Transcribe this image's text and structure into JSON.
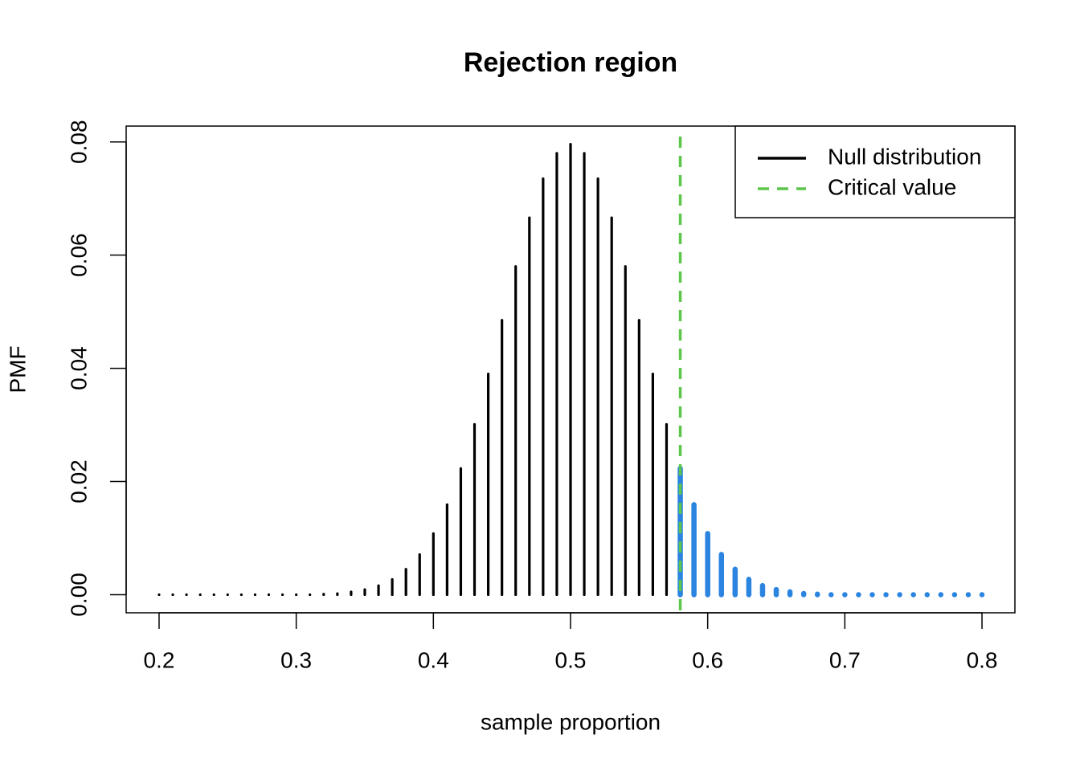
{
  "chart_data": {
    "type": "pmf",
    "title": "Rejection region",
    "x_label": "sample proportion",
    "y_label": "PMF",
    "x": [
      0.2,
      0.21,
      0.22,
      0.23,
      0.24,
      0.25,
      0.26,
      0.27,
      0.28,
      0.29,
      0.3,
      0.31,
      0.32,
      0.33,
      0.34,
      0.35,
      0.36,
      0.37,
      0.38,
      0.39,
      0.4,
      0.41,
      0.42,
      0.43,
      0.44,
      0.45,
      0.46,
      0.47,
      0.48,
      0.49,
      0.5,
      0.51,
      0.52,
      0.53,
      0.54,
      0.55,
      0.56,
      0.57,
      0.58,
      0.59,
      0.6,
      0.61,
      0.62,
      0.63,
      0.64,
      0.65,
      0.66,
      0.67,
      0.68,
      0.69,
      0.7,
      0.71,
      0.72,
      0.73,
      0.74,
      0.75,
      0.76,
      0.77,
      0.78,
      0.79,
      0.8
    ],
    "series": [
      {
        "name": "Null distribution",
        "color": "#000000",
        "values": [
          0,
          0,
          0,
          0,
          0,
          0,
          0,
          0,
          0,
          0,
          0,
          0,
          0.0001,
          0.0002,
          0.0005,
          0.0009,
          0.0016,
          0.0027,
          0.0045,
          0.0071,
          0.0108,
          0.0159,
          0.0223,
          0.0301,
          0.039,
          0.0485,
          0.058,
          0.0666,
          0.0735,
          0.078,
          0.0796,
          0.078,
          0.0735,
          0.0666,
          0.058,
          0.0485,
          0.039,
          0.0301,
          0.0223,
          0.0159,
          0.0108,
          0.0071,
          0.0045,
          0.0027,
          0.0016,
          0.0009,
          0.0005,
          0.0002,
          0.0001,
          0,
          0,
          0,
          0,
          0,
          0,
          0,
          0,
          0,
          0,
          0,
          0
        ]
      }
    ],
    "critical_value": {
      "name": "Critical value",
      "value": 0.58,
      "color": "#5cc54a"
    },
    "rejection_color": "#2a84e0",
    "xlim": [
      0.176,
      0.824
    ],
    "ylim": [
      -0.0032,
      0.0828
    ],
    "xticks": [
      0.2,
      0.3,
      0.4,
      0.5,
      0.6,
      0.7,
      0.8
    ],
    "yticks": [
      {
        "value": 0,
        "label": "0.00"
      },
      0.02,
      0.04,
      0.06,
      0.08
    ],
    "legend": "top-right"
  }
}
